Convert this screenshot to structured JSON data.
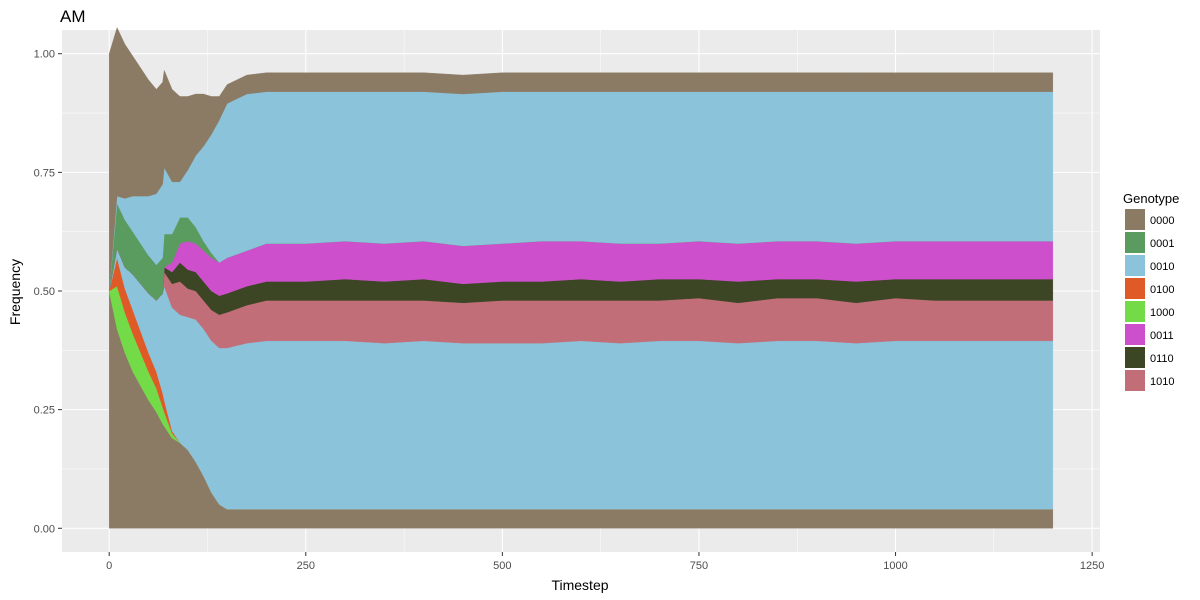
{
  "chart_data": {
    "type": "area",
    "title": "AM",
    "xlabel": "Timestep",
    "ylabel": "Frequency",
    "xlim": [
      -60,
      1260
    ],
    "ylim": [
      -0.05,
      1.05
    ],
    "x_ticks": [
      0,
      250,
      500,
      750,
      1000,
      1250
    ],
    "x_tick_labels": [
      "0",
      "250",
      "500",
      "750",
      "1000",
      "1250"
    ],
    "y_ticks": [
      0,
      0.25,
      0.5,
      0.75,
      1.0
    ],
    "y_tick_labels": [
      "0.00",
      "0.25",
      "0.50",
      "0.75",
      "1.00"
    ],
    "grid": true,
    "legend_title": "Genotype",
    "legend_position": "right",
    "x": [
      0,
      10,
      20,
      30,
      40,
      50,
      60,
      68,
      70,
      80,
      90,
      100,
      110,
      120,
      130,
      140,
      150,
      175,
      200,
      250,
      300,
      350,
      400,
      450,
      500,
      550,
      600,
      650,
      700,
      750,
      800,
      850,
      900,
      950,
      1000,
      1050,
      1100,
      1150,
      1200
    ],
    "series": [
      {
        "name": "0000",
        "color": "#8B7B65",
        "values": [
          0.5,
          0.42,
          0.37,
          0.33,
          0.3,
          0.27,
          0.245,
          0.22,
          0.215,
          0.19,
          0.18,
          0.165,
          0.14,
          0.11,
          0.075,
          0.05,
          0.04,
          0.04,
          0.04,
          0.04,
          0.04,
          0.04,
          0.04,
          0.04,
          0.04,
          0.04,
          0.04,
          0.04,
          0.04,
          0.04,
          0.04,
          0.04,
          0.04,
          0.04,
          0.04,
          0.04,
          0.04,
          0.04,
          0.04
        ]
      },
      {
        "name": "1000",
        "color": "#73DA48",
        "values": [
          0,
          0.09,
          0.085,
          0.08,
          0.07,
          0.06,
          0.05,
          0.035,
          0.03,
          0.01,
          0,
          0,
          0,
          0,
          0,
          0,
          0,
          0,
          0,
          0,
          0,
          0,
          0,
          0,
          0,
          0,
          0,
          0,
          0,
          0,
          0,
          0,
          0,
          0,
          0,
          0,
          0,
          0,
          0
        ]
      },
      {
        "name": "0100",
        "color": "#E05A28",
        "values": [
          0,
          0.06,
          0.05,
          0.05,
          0.045,
          0.04,
          0.035,
          0.03,
          0.025,
          0.005,
          0,
          0,
          0,
          0,
          0,
          0,
          0,
          0,
          0,
          0,
          0,
          0,
          0,
          0,
          0,
          0,
          0,
          0,
          0,
          0,
          0,
          0,
          0,
          0,
          0,
          0,
          0,
          0,
          0
        ]
      },
      {
        "name": "0010",
        "color": "#8AC3DA",
        "values": [
          0,
          0.02,
          0.045,
          0.075,
          0.1,
          0.125,
          0.15,
          0.21,
          0.24,
          0.26,
          0.27,
          0.28,
          0.3,
          0.31,
          0.32,
          0.33,
          0.34,
          0.35,
          0.355,
          0.355,
          0.355,
          0.35,
          0.355,
          0.35,
          0.35,
          0.35,
          0.355,
          0.35,
          0.355,
          0.355,
          0.35,
          0.355,
          0.355,
          0.35,
          0.355,
          0.355,
          0.355,
          0.355,
          0.355
        ]
      },
      {
        "name": "1010",
        "color": "#C26E79",
        "values": [
          0,
          0,
          0,
          0,
          0,
          0,
          0,
          0,
          0.03,
          0.05,
          0.07,
          0.06,
          0.06,
          0.06,
          0.065,
          0.07,
          0.075,
          0.08,
          0.085,
          0.085,
          0.085,
          0.09,
          0.085,
          0.085,
          0.09,
          0.09,
          0.085,
          0.09,
          0.085,
          0.09,
          0.085,
          0.09,
          0.09,
          0.085,
          0.09,
          0.085,
          0.085,
          0.085,
          0.085
        ]
      },
      {
        "name": "0110",
        "color": "#3C4524",
        "values": [
          0,
          0,
          0,
          0,
          0,
          0,
          0,
          0,
          0.01,
          0.025,
          0.04,
          0.04,
          0.04,
          0.04,
          0.04,
          0.04,
          0.04,
          0.04,
          0.04,
          0.04,
          0.045,
          0.04,
          0.045,
          0.04,
          0.04,
          0.04,
          0.045,
          0.04,
          0.045,
          0.04,
          0.045,
          0.04,
          0.04,
          0.045,
          0.04,
          0.045,
          0.045,
          0.045,
          0.045
        ]
      },
      {
        "name": "0011",
        "color": "#CD4FCB",
        "values": [
          0,
          0,
          0,
          0,
          0,
          0,
          0,
          0,
          0,
          0.02,
          0.04,
          0.06,
          0.06,
          0.065,
          0.07,
          0.07,
          0.075,
          0.075,
          0.08,
          0.08,
          0.08,
          0.08,
          0.08,
          0.08,
          0.08,
          0.085,
          0.08,
          0.08,
          0.075,
          0.08,
          0.08,
          0.08,
          0.08,
          0.08,
          0.08,
          0.08,
          0.08,
          0.08,
          0.08
        ]
      },
      {
        "name": "0001",
        "color": "#5A9B5F",
        "values": [
          0,
          0.095,
          0.1,
          0.09,
          0.085,
          0.08,
          0.075,
          0.075,
          0.07,
          0.06,
          0.055,
          0.05,
          0.035,
          0.02,
          0.01,
          0,
          0,
          0,
          0,
          0,
          0,
          0,
          0,
          0,
          0,
          0,
          0,
          0,
          0,
          0,
          0,
          0,
          0,
          0,
          0,
          0,
          0,
          0,
          0
        ]
      },
      {
        "name": "0010",
        "color": "#8AC3DA",
        "values": [
          0,
          0.015,
          0.045,
          0.075,
          0.1,
          0.125,
          0.15,
          0.155,
          0.14,
          0.11,
          0.075,
          0.1,
          0.15,
          0.2,
          0.25,
          0.3,
          0.325,
          0.33,
          0.32,
          0.32,
          0.315,
          0.32,
          0.315,
          0.32,
          0.32,
          0.315,
          0.315,
          0.32,
          0.32,
          0.315,
          0.32,
          0.315,
          0.315,
          0.32,
          0.315,
          0.315,
          0.315,
          0.315,
          0.315
        ]
      },
      {
        "name": "0000",
        "color": "#8B7B65",
        "values": [
          0.5,
          0.355,
          0.325,
          0.295,
          0.27,
          0.245,
          0.22,
          0.215,
          0.205,
          0.195,
          0.18,
          0.155,
          0.13,
          0.11,
          0.08,
          0.05,
          0.04,
          0.04,
          0.04,
          0.04,
          0.04,
          0.04,
          0.04,
          0.04,
          0.04,
          0.04,
          0.04,
          0.04,
          0.04,
          0.04,
          0.04,
          0.04,
          0.04,
          0.04,
          0.04,
          0.04,
          0.04,
          0.04,
          0.04
        ]
      }
    ],
    "legend": [
      {
        "label": "0000",
        "color": "#8B7B65"
      },
      {
        "label": "0001",
        "color": "#5A9B5F"
      },
      {
        "label": "0010",
        "color": "#8AC3DA"
      },
      {
        "label": "0100",
        "color": "#E05A28"
      },
      {
        "label": "1000",
        "color": "#73DA48"
      },
      {
        "label": "0011",
        "color": "#CD4FCB"
      },
      {
        "label": "0110",
        "color": "#3C4524"
      },
      {
        "label": "1010",
        "color": "#C26E79"
      }
    ]
  },
  "colors": {
    "panel_background": "#EBEBEB",
    "grid_major": "#FFFFFF"
  }
}
